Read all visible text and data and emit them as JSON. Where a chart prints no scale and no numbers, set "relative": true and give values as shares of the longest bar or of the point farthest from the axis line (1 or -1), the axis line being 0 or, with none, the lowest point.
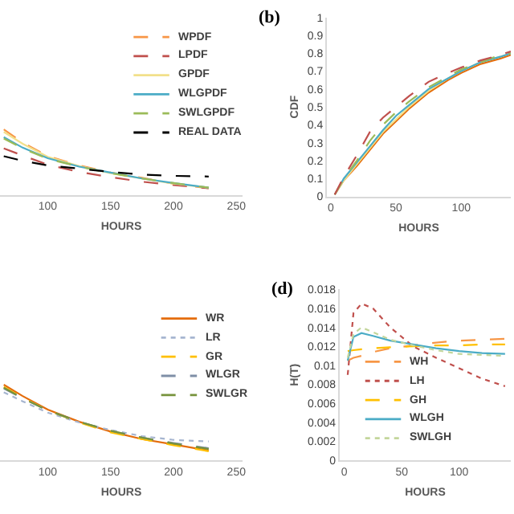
{
  "chart_data": [
    {
      "type": "line",
      "relative": true,
      "tick_labels": "x",
      "xlabel": "HOURS",
      "x": [
        65,
        80,
        100,
        125,
        150,
        175,
        200,
        228
      ],
      "xlim": [
        62,
        255
      ],
      "xticks": [
        100,
        150,
        200,
        250
      ],
      "legend": "top right",
      "series": [
        {
          "name": "WPDF",
          "color": "#f79646",
          "line_style": "dashed",
          "values": [
            1,
            0.8,
            0.59,
            0.45,
            0.34,
            0.26,
            0.17,
            0.1
          ]
        },
        {
          "name": "LPDF",
          "color": "#c0504d",
          "line_style": "dashed",
          "values": [
            0.71,
            0.6,
            0.46,
            0.35,
            0.27,
            0.2,
            0.15,
            0.1
          ]
        },
        {
          "name": "GPDF",
          "color": "#f2e08a",
          "line_style": "solid",
          "values": [
            0.96,
            0.78,
            0.58,
            0.44,
            0.33,
            0.25,
            0.17,
            0.11
          ]
        },
        {
          "name": "WLGPDF",
          "color": "#4bacc6",
          "line_style": "solid",
          "values": [
            0.88,
            0.72,
            0.56,
            0.43,
            0.34,
            0.25,
            0.18,
            0.11
          ]
        },
        {
          "name": "SWLGPDF",
          "color": "#9bbb59",
          "line_style": "dashed",
          "values": [
            0.86,
            0.71,
            0.55,
            0.43,
            0.33,
            0.25,
            0.18,
            0.11
          ]
        },
        {
          "name": "REAL DATA",
          "color": "#000000",
          "line_style": "dashed",
          "values": [
            0.59,
            0.52,
            0.45,
            0.4,
            0.35,
            0.31,
            0.29,
            0.28
          ]
        }
      ]
    },
    {
      "type": "line",
      "title": "(b)",
      "xlabel": "HOURS",
      "ylabel": "CDF",
      "x": [
        3,
        10,
        20,
        30,
        40,
        50,
        60,
        75,
        90,
        100,
        115,
        130,
        138
      ],
      "xlim": [
        -3,
        138
      ],
      "xticks": [
        0,
        50,
        100
      ],
      "ylim": [
        0,
        1
      ],
      "yticks": [
        0,
        0.1,
        0.2,
        0.3,
        0.4,
        0.5,
        0.6,
        0.7,
        0.8,
        0.9,
        1
      ],
      "series": [
        {
          "color": "#e46c0a",
          "line_style": "solid",
          "values": [
            0.01,
            0.09,
            0.17,
            0.26,
            0.35,
            0.42,
            0.49,
            0.58,
            0.65,
            0.69,
            0.74,
            0.77,
            0.79
          ]
        },
        {
          "color": "#f2e08a",
          "line_style": "solid",
          "values": [
            0.01,
            0.09,
            0.18,
            0.27,
            0.36,
            0.43,
            0.5,
            0.59,
            0.66,
            0.7,
            0.75,
            0.78,
            0.8
          ]
        },
        {
          "color": "#4bacc6",
          "line_style": "solid",
          "values": [
            0.01,
            0.1,
            0.19,
            0.28,
            0.37,
            0.45,
            0.51,
            0.6,
            0.66,
            0.7,
            0.75,
            0.78,
            0.8
          ]
        },
        {
          "color": "#9bbb59",
          "line_style": "dashed",
          "values": [
            0.01,
            0.1,
            0.2,
            0.31,
            0.4,
            0.47,
            0.53,
            0.61,
            0.67,
            0.71,
            0.75,
            0.79,
            0.8
          ]
        },
        {
          "color": "#c0504d",
          "line_style": "dashed",
          "values": [
            0.01,
            0.11,
            0.23,
            0.36,
            0.44,
            0.5,
            0.56,
            0.64,
            0.69,
            0.72,
            0.76,
            0.79,
            0.81
          ]
        }
      ]
    },
    {
      "type": "line",
      "relative": true,
      "tick_labels": "x",
      "xlabel": "HOURS",
      "x": [
        65,
        80,
        100,
        125,
        150,
        175,
        200,
        228
      ],
      "xlim": [
        62,
        255
      ],
      "xticks": [
        100,
        150,
        200,
        250
      ],
      "legend": "top right",
      "series": [
        {
          "name": "WR",
          "color": "#e46c0a",
          "line_style": "solid",
          "values": [
            1,
            0.85,
            0.67,
            0.51,
            0.38,
            0.28,
            0.21,
            0.13
          ]
        },
        {
          "name": "LR",
          "color": "#a6b5d0",
          "line_style": "dotted",
          "values": [
            0.9,
            0.78,
            0.63,
            0.5,
            0.4,
            0.32,
            0.27,
            0.25
          ]
        },
        {
          "name": "GR",
          "color": "#ffc000",
          "line_style": "dashed",
          "values": [
            0.97,
            0.83,
            0.66,
            0.5,
            0.37,
            0.28,
            0.2,
            0.12
          ]
        },
        {
          "name": "WLGR",
          "color": "#7f8fa6",
          "line_style": "dashed",
          "values": [
            0.95,
            0.82,
            0.66,
            0.51,
            0.39,
            0.3,
            0.23,
            0.16
          ]
        },
        {
          "name": "SWLGR",
          "color": "#77933c",
          "line_style": "dashed",
          "values": [
            0.96,
            0.82,
            0.66,
            0.51,
            0.39,
            0.3,
            0.22,
            0.15
          ]
        }
      ]
    },
    {
      "type": "line",
      "title": "(d)",
      "xlabel": "HOURS",
      "ylabel": "H(T)",
      "x": [
        3,
        8,
        15,
        25,
        40,
        60,
        80,
        100,
        120,
        140
      ],
      "xlim": [
        -4,
        145
      ],
      "xticks": [
        0,
        50,
        100
      ],
      "ylim": [
        0,
        0.018
      ],
      "yticks": [
        0,
        0.002,
        0.004,
        0.006,
        0.008,
        0.01,
        0.012,
        0.014,
        0.016,
        0.018
      ],
      "legend": "bottom left",
      "series": [
        {
          "name": "WH",
          "color": "#f79646",
          "line_style": "dashed",
          "values": [
            0.0105,
            0.0108,
            0.011,
            0.0114,
            0.0118,
            0.0121,
            0.0124,
            0.0126,
            0.0127,
            0.0128
          ]
        },
        {
          "name": "LH",
          "color": "#c0504d",
          "line_style": "dotted",
          "values": [
            0.009,
            0.0155,
            0.0165,
            0.016,
            0.014,
            0.012,
            0.0108,
            0.0097,
            0.0086,
            0.0078
          ]
        },
        {
          "name": "GH",
          "color": "#ffc000",
          "line_style": "dashed",
          "values": [
            0.0115,
            0.0116,
            0.0117,
            0.0118,
            0.0119,
            0.012,
            0.0121,
            0.0121,
            0.0122,
            0.0122
          ]
        },
        {
          "name": "WLGH",
          "color": "#4bacc6",
          "line_style": "solid",
          "values": [
            0.0105,
            0.013,
            0.0134,
            0.0131,
            0.0126,
            0.0122,
            0.0118,
            0.0115,
            0.0113,
            0.0112
          ]
        },
        {
          "name": "SWLGH",
          "color": "#c3d69b",
          "line_style": "dotted",
          "values": [
            0.0108,
            0.0133,
            0.014,
            0.0135,
            0.0127,
            0.0121,
            0.0116,
            0.0112,
            0.0111,
            0.011
          ]
        }
      ]
    }
  ]
}
